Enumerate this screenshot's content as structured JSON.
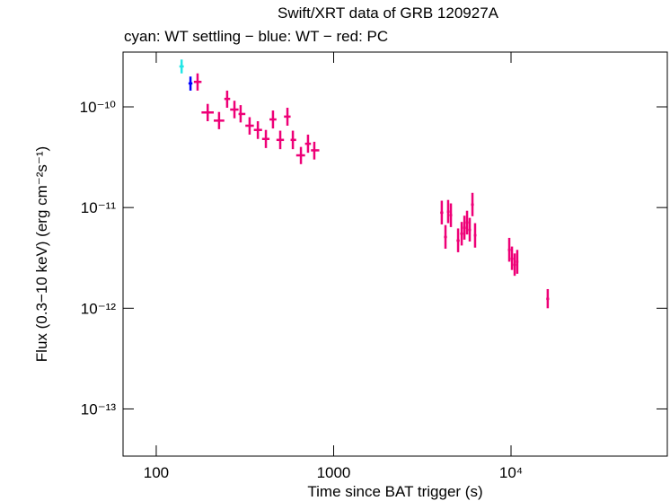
{
  "chart_data": {
    "type": "errorbar-scatter",
    "title": "Swift/XRT data of GRB 120927A",
    "subtitle": "cyan: WT settling − blue: WT − red: PC",
    "x_label": "Time since BAT trigger (s)",
    "y_label": "Flux (0.3−10 keV) (erg cm⁻²s⁻¹)",
    "x_log": true,
    "y_log": true,
    "xlim": [
      65,
      76000
    ],
    "ylim": [
      3.4e-14,
      3.5e-10
    ],
    "xticks": [
      100,
      1000,
      {
        "value": 10000,
        "label": "10⁴"
      }
    ],
    "yticks": [
      {
        "value": 1e-13,
        "label": "10⁻¹³"
      },
      {
        "value": 1e-12,
        "label": "10⁻¹²"
      },
      {
        "value": 1e-11,
        "label": "10⁻¹¹"
      },
      {
        "value": 1e-10,
        "label": "10⁻¹⁰"
      }
    ],
    "series": [
      {
        "color": "#22e6e6",
        "x": [
          139
        ],
        "x_low": [
          135
        ],
        "x_high": [
          143
        ],
        "values": [
          2.52e-10
        ],
        "y_low": [
          2.15e-10
        ],
        "y_high": [
          2.95e-10
        ]
      },
      {
        "color": "#0000ff",
        "x": [
          156
        ],
        "x_low": [
          152
        ],
        "x_high": [
          160
        ],
        "values": [
          1.71e-10
        ],
        "y_low": [
          1.45e-10
        ],
        "y_high": [
          2e-10
        ]
      },
      {
        "color": "#ee0077",
        "x": [
          171,
          195,
          226,
          251,
          276,
          299,
          336,
          374,
          415,
          455,
          500,
          549,
          589,
          654,
          717,
          778,
          4070,
          4270,
          4420,
          4580,
          5030,
          5270,
          5460,
          5650,
          5850,
          6060,
          6270,
          9770,
          10120,
          10480,
          10840,
          16100
        ],
        "x_low": [
          163,
          180,
          211,
          242,
          261,
          291,
          318,
          355,
          395,
          435,
          476,
          525,
          572,
          615,
          690,
          745,
          3990,
          4190,
          4350,
          4500,
          4930,
          5170,
          5370,
          5560,
          5750,
          5950,
          6170,
          9600,
          9950,
          10300,
          10660,
          15800
        ],
        "x_high": [
          180,
          211,
          242,
          261,
          291,
          318,
          355,
          395,
          435,
          476,
          525,
          572,
          615,
          690,
          745,
          830,
          4150,
          4350,
          4500,
          4660,
          5130,
          5370,
          5560,
          5750,
          5950,
          6170,
          6380,
          9950,
          10300,
          10660,
          11000,
          16400
        ],
        "values": [
          1.77e-10,
          8.8e-11,
          7.3e-11,
          1.2e-10,
          9.4e-11,
          8.5e-11,
          6.5e-11,
          5.9e-11,
          4.8e-11,
          7.5e-11,
          4.7e-11,
          8e-11,
          4.7e-11,
          3.3e-11,
          4.3e-11,
          3.7e-11,
          8.9e-12,
          5.1e-12,
          9.1e-12,
          8.4e-12,
          4.7e-12,
          5.5e-12,
          6.3e-12,
          7.1e-12,
          6e-12,
          1.07e-11,
          5.3e-12,
          3.8e-12,
          3.1e-12,
          2.7e-12,
          2.9e-12,
          1.24e-12
        ],
        "y_low": [
          1.45e-10,
          7.2e-11,
          6e-11,
          9.8e-11,
          7.7e-11,
          7e-11,
          5.3e-11,
          4.8e-11,
          3.9e-11,
          6.1e-11,
          3.8e-11,
          6.5e-11,
          3.8e-11,
          2.7e-11,
          3.5e-11,
          3e-11,
          6.8e-12,
          3.9e-12,
          7e-12,
          6.4e-12,
          3.6e-12,
          4.2e-12,
          4.8e-12,
          5.4e-12,
          4.6e-12,
          8.2e-12,
          4e-12,
          2.9e-12,
          2.4e-12,
          2.1e-12,
          2.2e-12,
          1e-12
        ],
        "y_high": [
          2.15e-10,
          1.07e-10,
          8.9e-11,
          1.45e-10,
          1.15e-10,
          1.04e-10,
          7.9e-11,
          7.2e-11,
          5.9e-11,
          9.2e-11,
          5.8e-11,
          9.8e-11,
          5.8e-11,
          4e-11,
          5.3e-11,
          4.5e-11,
          1.17e-11,
          6.7e-12,
          1.19e-11,
          1.1e-11,
          6.2e-12,
          7.2e-12,
          8.3e-12,
          9.3e-12,
          7.9e-12,
          1.4e-11,
          7e-12,
          5e-12,
          4.1e-12,
          3.5e-12,
          3.8e-12,
          1.55e-12
        ]
      }
    ]
  }
}
